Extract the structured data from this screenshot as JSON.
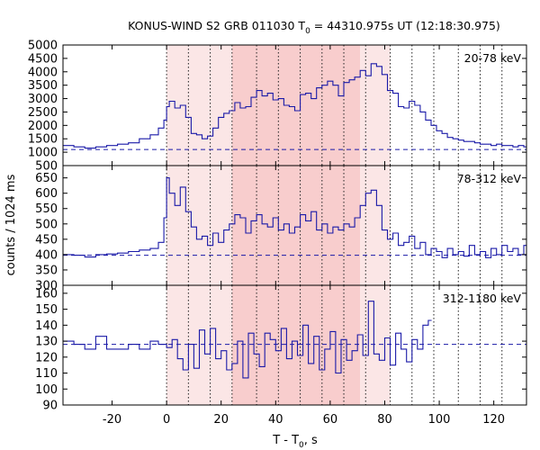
{
  "chart_data": {
    "type": "line",
    "title": "KONUS-WIND S2 GRB 011030 T",
    "title_subscript": "0",
    "title_suffix": " = 44310.975s UT (12:18:30.975)",
    "xlabel": "T - T",
    "xlabel_subscript": "0",
    "xlabel_suffix": ", s",
    "ylabel": "counts / 1024 ms",
    "xlim": [
      -38,
      132
    ],
    "x_ticks": [
      -20,
      0,
      20,
      40,
      60,
      80,
      100,
      120
    ],
    "grid": false,
    "line_color": "#1a1aa8",
    "marker_lines_x": [
      0,
      8,
      16,
      24,
      33,
      41,
      49,
      57,
      65,
      73,
      82,
      90,
      98,
      107,
      115,
      123
    ],
    "shaded_intervals": [
      {
        "x0": 0,
        "x1": 24,
        "color": "#fbe6e6"
      },
      {
        "x0": 24,
        "x1": 71,
        "color": "#f8cdcd"
      },
      {
        "x0": 71,
        "x1": 82,
        "color": "#fbe6e6"
      }
    ],
    "panels": [
      {
        "label": "20-78 keV",
        "ylim": [
          500,
          5000
        ],
        "y_ticks": [
          1000,
          1500,
          2000,
          2500,
          3000,
          3500,
          4000,
          4500,
          5000
        ],
        "y_tick_labels": [
          "1000",
          "1500",
          "2000",
          "2500",
          "3000",
          "3500",
          "4000",
          "4500",
          "5000"
        ],
        "background": 1100,
        "points": [
          [
            -38,
            1250
          ],
          [
            -34,
            1200
          ],
          [
            -30,
            1150
          ],
          [
            -26,
            1200
          ],
          [
            -22,
            1250
          ],
          [
            -18,
            1300
          ],
          [
            -14,
            1350
          ],
          [
            -10,
            1500
          ],
          [
            -6,
            1650
          ],
          [
            -3,
            1900
          ],
          [
            -1,
            2200
          ],
          [
            0,
            2700
          ],
          [
            1,
            2900
          ],
          [
            3,
            2650
          ],
          [
            5,
            2750
          ],
          [
            7,
            2300
          ],
          [
            9,
            1700
          ],
          [
            11,
            1650
          ],
          [
            13,
            1500
          ],
          [
            15,
            1600
          ],
          [
            17,
            1900
          ],
          [
            19,
            2300
          ],
          [
            21,
            2450
          ],
          [
            23,
            2550
          ],
          [
            25,
            2850
          ],
          [
            27,
            2650
          ],
          [
            29,
            2700
          ],
          [
            31,
            3050
          ],
          [
            33,
            3300
          ],
          [
            35,
            3100
          ],
          [
            37,
            3200
          ],
          [
            39,
            2950
          ],
          [
            41,
            3000
          ],
          [
            43,
            2750
          ],
          [
            45,
            2700
          ],
          [
            47,
            2550
          ],
          [
            49,
            3150
          ],
          [
            51,
            3200
          ],
          [
            53,
            3000
          ],
          [
            55,
            3400
          ],
          [
            57,
            3500
          ],
          [
            59,
            3650
          ],
          [
            61,
            3500
          ],
          [
            63,
            3100
          ],
          [
            65,
            3600
          ],
          [
            67,
            3700
          ],
          [
            69,
            3800
          ],
          [
            71,
            4050
          ],
          [
            73,
            3850
          ],
          [
            75,
            4300
          ],
          [
            77,
            4200
          ],
          [
            79,
            3900
          ],
          [
            81,
            3300
          ],
          [
            83,
            3200
          ],
          [
            85,
            2700
          ],
          [
            87,
            2650
          ],
          [
            89,
            2900
          ],
          [
            91,
            2750
          ],
          [
            93,
            2500
          ],
          [
            95,
            2200
          ],
          [
            97,
            2000
          ],
          [
            99,
            1800
          ],
          [
            101,
            1700
          ],
          [
            103,
            1550
          ],
          [
            105,
            1500
          ],
          [
            107,
            1450
          ],
          [
            109,
            1400
          ],
          [
            111,
            1400
          ],
          [
            113,
            1350
          ],
          [
            115,
            1300
          ],
          [
            117,
            1300
          ],
          [
            119,
            1250
          ],
          [
            121,
            1300
          ],
          [
            123,
            1250
          ],
          [
            125,
            1250
          ],
          [
            127,
            1200
          ],
          [
            129,
            1250
          ],
          [
            131,
            1200
          ]
        ]
      },
      {
        "label": "78-312 keV",
        "ylim": [
          300,
          690
        ],
        "y_ticks": [
          300,
          350,
          400,
          450,
          500,
          550,
          600,
          650
        ],
        "y_tick_labels": [
          "300",
          "350",
          "400",
          "450",
          "500",
          "550",
          "600",
          "650"
        ],
        "background": 398,
        "points": [
          [
            -38,
            400
          ],
          [
            -34,
            398
          ],
          [
            -30,
            392
          ],
          [
            -26,
            400
          ],
          [
            -22,
            402
          ],
          [
            -18,
            405
          ],
          [
            -14,
            410
          ],
          [
            -10,
            415
          ],
          [
            -6,
            420
          ],
          [
            -3,
            440
          ],
          [
            -1,
            520
          ],
          [
            0,
            650
          ],
          [
            1,
            600
          ],
          [
            3,
            560
          ],
          [
            5,
            620
          ],
          [
            7,
            540
          ],
          [
            9,
            490
          ],
          [
            11,
            450
          ],
          [
            13,
            460
          ],
          [
            15,
            430
          ],
          [
            17,
            470
          ],
          [
            19,
            440
          ],
          [
            21,
            480
          ],
          [
            23,
            500
          ],
          [
            25,
            530
          ],
          [
            27,
            520
          ],
          [
            29,
            470
          ],
          [
            31,
            510
          ],
          [
            33,
            530
          ],
          [
            35,
            500
          ],
          [
            37,
            490
          ],
          [
            39,
            520
          ],
          [
            41,
            480
          ],
          [
            43,
            500
          ],
          [
            45,
            470
          ],
          [
            47,
            490
          ],
          [
            49,
            530
          ],
          [
            51,
            510
          ],
          [
            53,
            540
          ],
          [
            55,
            480
          ],
          [
            57,
            500
          ],
          [
            59,
            470
          ],
          [
            61,
            490
          ],
          [
            63,
            480
          ],
          [
            65,
            500
          ],
          [
            67,
            490
          ],
          [
            69,
            520
          ],
          [
            71,
            560
          ],
          [
            73,
            600
          ],
          [
            75,
            610
          ],
          [
            77,
            560
          ],
          [
            79,
            480
          ],
          [
            81,
            450
          ],
          [
            83,
            470
          ],
          [
            85,
            430
          ],
          [
            87,
            440
          ],
          [
            89,
            460
          ],
          [
            91,
            420
          ],
          [
            93,
            440
          ],
          [
            95,
            400
          ],
          [
            97,
            420
          ],
          [
            99,
            410
          ],
          [
            101,
            390
          ],
          [
            103,
            420
          ],
          [
            105,
            400
          ],
          [
            107,
            410
          ],
          [
            109,
            395
          ],
          [
            111,
            430
          ],
          [
            113,
            400
          ],
          [
            115,
            410
          ],
          [
            117,
            390
          ],
          [
            119,
            420
          ],
          [
            121,
            400
          ],
          [
            123,
            430
          ],
          [
            125,
            410
          ],
          [
            127,
            420
          ],
          [
            129,
            400
          ],
          [
            131,
            430
          ]
        ]
      },
      {
        "label": "312-1180 keV",
        "ylim": [
          90,
          165
        ],
        "y_ticks": [
          90,
          100,
          110,
          120,
          130,
          140,
          150,
          160
        ],
        "y_tick_labels": [
          "90",
          "100",
          "110",
          "120",
          "130",
          "140",
          "150",
          "160"
        ],
        "background": 128,
        "points": [
          [
            -38,
            130
          ],
          [
            -34,
            128
          ],
          [
            -30,
            125
          ],
          [
            -26,
            133
          ],
          [
            -22,
            125
          ],
          [
            -18,
            125
          ],
          [
            -14,
            128
          ],
          [
            -10,
            125
          ],
          [
            -6,
            130
          ],
          [
            -3,
            128
          ],
          [
            -1,
            128
          ],
          [
            0,
            126
          ],
          [
            2,
            131
          ],
          [
            4,
            119
          ],
          [
            6,
            112
          ],
          [
            8,
            128
          ],
          [
            10,
            113
          ],
          [
            12,
            137
          ],
          [
            14,
            122
          ],
          [
            16,
            138
          ],
          [
            18,
            119
          ],
          [
            20,
            124
          ],
          [
            22,
            112
          ],
          [
            24,
            116
          ],
          [
            26,
            130
          ],
          [
            28,
            107
          ],
          [
            30,
            135
          ],
          [
            32,
            122
          ],
          [
            34,
            114
          ],
          [
            36,
            135
          ],
          [
            38,
            131
          ],
          [
            40,
            124
          ],
          [
            42,
            138
          ],
          [
            44,
            119
          ],
          [
            46,
            130
          ],
          [
            48,
            121
          ],
          [
            50,
            140
          ],
          [
            52,
            116
          ],
          [
            54,
            133
          ],
          [
            56,
            112
          ],
          [
            58,
            125
          ],
          [
            60,
            136
          ],
          [
            62,
            110
          ],
          [
            64,
            131
          ],
          [
            66,
            118
          ],
          [
            68,
            124
          ],
          [
            70,
            134
          ],
          [
            72,
            121
          ],
          [
            74,
            155
          ],
          [
            76,
            122
          ],
          [
            78,
            118
          ],
          [
            80,
            132
          ],
          [
            82,
            115
          ],
          [
            84,
            135
          ],
          [
            86,
            125
          ],
          [
            88,
            117
          ],
          [
            90,
            131
          ],
          [
            92,
            125
          ],
          [
            94,
            140
          ],
          [
            96,
            143
          ]
        ]
      }
    ]
  }
}
